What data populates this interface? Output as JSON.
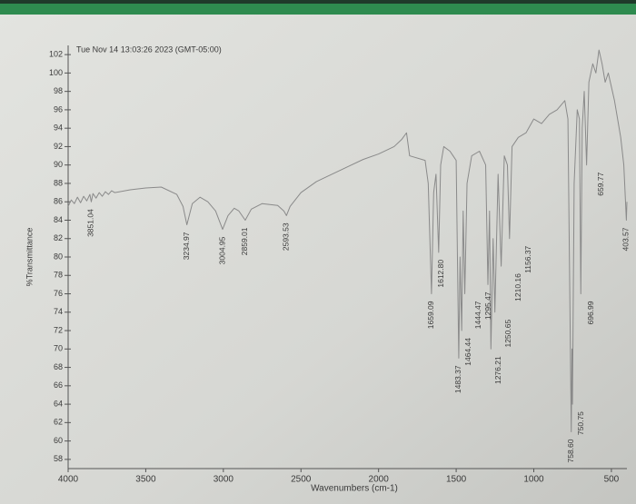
{
  "chart_data": {
    "type": "line",
    "title": "Tue Nov 14 13:03:26 2023 (GMT-05:00)",
    "y_label": "%Transmittance",
    "x_label": "Wavenumbers (cm-1)",
    "xlim": [
      4000,
      400
    ],
    "ylim": [
      57,
      103
    ],
    "xticks": [
      4000,
      3500,
      3000,
      2500,
      2000,
      1500,
      1000,
      500
    ],
    "yticks": [
      58,
      60,
      62,
      64,
      66,
      68,
      70,
      72,
      74,
      76,
      78,
      80,
      82,
      84,
      86,
      88,
      90,
      92,
      94,
      96,
      98,
      100,
      102
    ],
    "series": [
      {
        "color": "#8a8a8a",
        "x": [
          4000,
          3980,
          3960,
          3940,
          3920,
          3900,
          3880,
          3860,
          3851.04,
          3840,
          3820,
          3800,
          3780,
          3760,
          3740,
          3720,
          3700,
          3600,
          3500,
          3400,
          3300,
          3260,
          3234.97,
          3200,
          3150,
          3100,
          3050,
          3004.95,
          2970,
          2930,
          2900,
          2859.01,
          2820,
          2750,
          2650,
          2610,
          2593.53,
          2570,
          2500,
          2400,
          2300,
          2200,
          2100,
          2000,
          1900,
          1850,
          1820,
          1800,
          1700,
          1680,
          1659.09,
          1645,
          1630,
          1612.8,
          1600,
          1580,
          1540,
          1520,
          1500,
          1483.37,
          1475,
          1464.44,
          1455,
          1444.47,
          1430,
          1400,
          1350,
          1310,
          1295.47,
          1285,
          1276.21,
          1262,
          1250.65,
          1230,
          1210.16,
          1190,
          1170,
          1156.37,
          1140,
          1100,
          1050,
          1000,
          950,
          900,
          850,
          800,
          780,
          758.6,
          754,
          750.75,
          740,
          720,
          706,
          696.99,
          688,
          675,
          659.77,
          645,
          620,
          600,
          580,
          560,
          540,
          520,
          500,
          480,
          460,
          440,
          420,
          403.57,
          400
        ],
        "values": [
          85.5,
          86.2,
          85.8,
          86.5,
          85.9,
          86.6,
          86.1,
          86.8,
          86.0,
          86.9,
          86.4,
          87,
          86.6,
          87.1,
          86.8,
          87.2,
          87,
          87.3,
          87.5,
          87.6,
          86.8,
          85.5,
          83.5,
          85.8,
          86.5,
          86,
          85,
          83,
          84.5,
          85.3,
          85,
          84,
          85.2,
          85.8,
          85.6,
          85,
          84.5,
          85.5,
          87,
          88.2,
          89,
          89.8,
          90.6,
          91.2,
          92,
          92.8,
          93.5,
          91,
          90.5,
          88,
          76,
          87,
          89,
          80.5,
          90,
          92,
          91.5,
          91,
          90.5,
          69,
          80,
          72,
          85,
          76,
          88,
          91,
          91.5,
          90,
          77,
          85,
          70,
          82,
          74,
          89,
          79,
          91,
          90,
          82,
          92,
          93,
          93.5,
          95,
          94.5,
          95.5,
          96,
          97,
          95,
          61,
          70,
          64,
          88,
          96,
          95,
          76,
          94,
          98,
          90,
          99,
          101,
          100,
          102.5,
          101,
          99,
          100,
          98.5,
          97,
          95,
          93,
          90,
          84,
          86
        ]
      }
    ],
    "peak_labels": [
      {
        "value": 3851.04,
        "label": "3851.04"
      },
      {
        "value": 3234.97,
        "label": "3234.97"
      },
      {
        "value": 3004.95,
        "label": "3004.95"
      },
      {
        "value": 2859.01,
        "label": "2859.01"
      },
      {
        "value": 2593.53,
        "label": "2593.53"
      },
      {
        "value": 1659.09,
        "label": "1659.09"
      },
      {
        "value": 1612.8,
        "label": "1612.80"
      },
      {
        "value": 1483.37,
        "label": "1483.37"
      },
      {
        "value": 1464.44,
        "label": "1464.44"
      },
      {
        "value": 1444.47,
        "label": "1444.47"
      },
      {
        "value": 1295.47,
        "label": "1295.47"
      },
      {
        "value": 1276.21,
        "label": "1276.21"
      },
      {
        "value": 1250.65,
        "label": "1250.65"
      },
      {
        "value": 1210.16,
        "label": "1210.16"
      },
      {
        "value": 1156.37,
        "label": "1156.37"
      },
      {
        "value": 758.6,
        "label": "758.60"
      },
      {
        "value": 750.75,
        "label": "750.75"
      },
      {
        "value": 696.99,
        "label": "696.99"
      },
      {
        "value": 659.77,
        "label": "659.77"
      },
      {
        "value": 403.57,
        "label": "403.57"
      }
    ]
  }
}
